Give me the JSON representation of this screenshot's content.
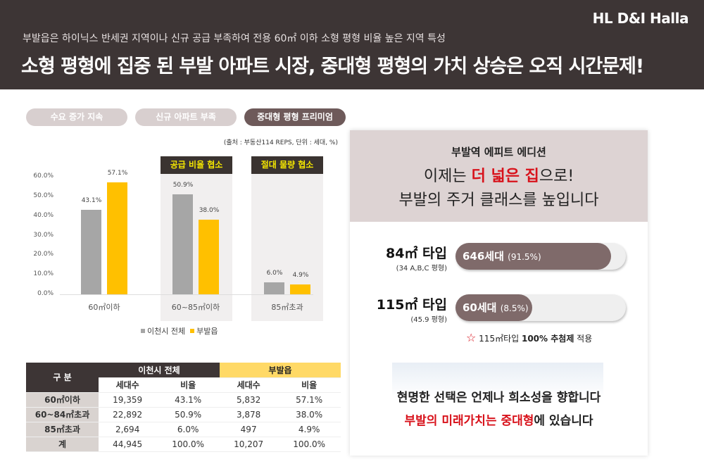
{
  "header": {
    "logo": "HL D&I Halla",
    "subtitle": "부발읍은 하이닉스 반세권 지역이나 신규 공급 부족하여 전용 60㎡ 이하 소형 평형 비율 높은 지역 특성",
    "title_a": "소형 평형에 집중 된 부발 아파트 시장, ",
    "title_b": "중대형 평형의 가치 상승은 오직 시간문제!"
  },
  "pills": [
    "수요 증가 지속",
    "신규 아파트 부족",
    "중대형 평형 프리미엄"
  ],
  "colors": {
    "header": "#3d3535",
    "accent": "#d8121b",
    "series_city": "#a6a6a6",
    "series_bubal": "#ffc000",
    "bar_fill": "#7f6a6a"
  },
  "chart_data": {
    "type": "bar",
    "source_note": "(출처 : 부동산114 REPS,  단위 : 세대, %)",
    "categories": [
      "60㎡이하",
      "60~85㎡이하",
      "85㎡초과"
    ],
    "series": [
      {
        "name": "이천시 전체",
        "values": [
          43.1,
          50.9,
          6.0
        ]
      },
      {
        "name": "부발읍",
        "values": [
          57.1,
          38.0,
          4.9
        ]
      }
    ],
    "value_labels": [
      [
        "43.1%",
        "50.9%",
        "6.0%"
      ],
      [
        "57.1%",
        "38.0%",
        "4.9%"
      ]
    ],
    "yticks": [
      "0.0%",
      "10.0%",
      "20.0%",
      "30.0%",
      "40.0%",
      "50.0%",
      "60.0%"
    ],
    "ylim": [
      0,
      60
    ],
    "annotations": [
      "공급 비율 협소",
      "절대 물량 협소"
    ],
    "legend": "bottom"
  },
  "table": {
    "head": [
      "구 분",
      "이천시 전체",
      "부발읍"
    ],
    "sub": [
      "세대수",
      "비율",
      "세대수",
      "비율"
    ],
    "rows": [
      [
        "60㎡이하",
        "19,359",
        "43.1%",
        "5,832",
        "57.1%"
      ],
      [
        "60~84㎡초과",
        "22,892",
        "50.9%",
        "3,878",
        "38.0%"
      ],
      [
        "85㎡초과",
        "2,694",
        "6.0%",
        "497",
        "4.9%"
      ],
      [
        "계",
        "44,945",
        "100.0%",
        "10,207",
        "100.0%"
      ]
    ]
  },
  "panel": {
    "t1": "부발역 에피트 에디션",
    "t2a": "이제는 ",
    "t2b": "더 넓은 집",
    "t2c": "으로!",
    "t3": "부발의 주거 클래스를 높입니다",
    "types": [
      {
        "name": "84㎡ 타입",
        "sub": "(34 A,B,C 평형)",
        "count": "646세대",
        "pct": "(91.5%)",
        "share": 91.5
      },
      {
        "name": "115㎡ 타입",
        "sub": "(45.9 평형)",
        "count": "60세대",
        "pct": "(8.5%)",
        "share": 8.5
      }
    ],
    "note_a": "115㎡타입 ",
    "note_b": "100% 추첨제",
    "note_c": " 적용",
    "b1": "현명한 선택은 언제나 희소성을 향합니다",
    "b2a": "부발의 미래가치는 중대형",
    "b2b": "에 있습니다"
  }
}
